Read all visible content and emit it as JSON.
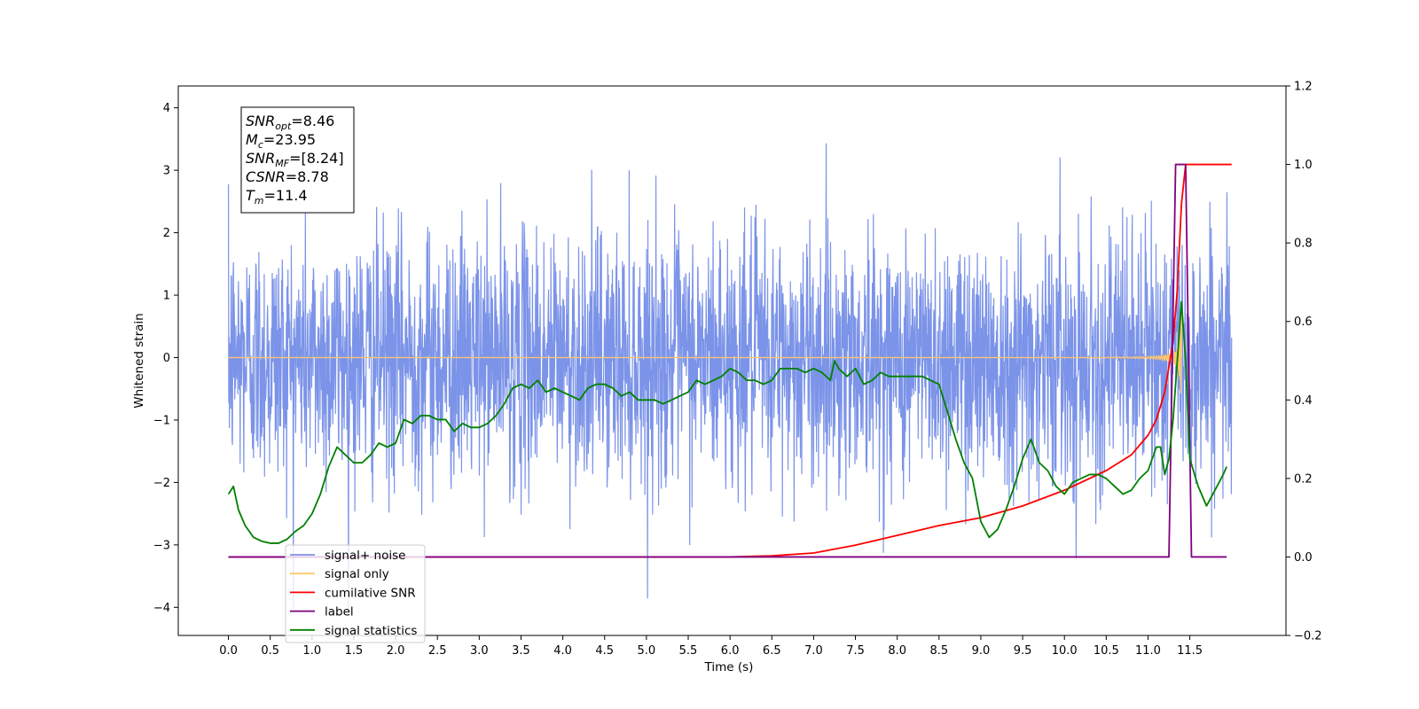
{
  "chart_data": {
    "type": "line",
    "xlabel": "Time (s)",
    "ylabel": "Whitened strain",
    "xlim": [
      -0.6,
      12.65
    ],
    "ylim": [
      -4.45,
      4.35
    ],
    "y2lim": [
      -0.2,
      1.2
    ],
    "x_ticks": [
      "0.0",
      "0.5",
      "1.0",
      "1.5",
      "2.0",
      "2.5",
      "3.0",
      "3.5",
      "4.0",
      "4.5",
      "5.0",
      "5.5",
      "6.0",
      "6.5",
      "7.0",
      "7.5",
      "8.0",
      "8.5",
      "9.0",
      "9.5",
      "10.0",
      "10.5",
      "11.0",
      "11.5"
    ],
    "y_ticks": [
      "4",
      "3",
      "2",
      "1",
      "0",
      "−1",
      "−2",
      "−3",
      "−4"
    ],
    "y2_ticks": [
      "1.2",
      "1.0",
      "0.8",
      "0.6",
      "0.4",
      "0.2",
      "0.0",
      "−0.2"
    ],
    "annotation": {
      "lines": [
        {
          "sym": "SNR",
          "sub": "opt",
          "val": "=8.46"
        },
        {
          "sym": "M",
          "sub": "c",
          "val": "=23.95"
        },
        {
          "sym": "SNR",
          "sub": "MF",
          "val": "=[8.24]"
        },
        {
          "sym": "CSNR",
          "sub": "",
          "val": "=8.78"
        },
        {
          "sym": "T",
          "sub": "m",
          "val": "=11.4"
        }
      ]
    },
    "legend": {
      "placement": "lower-left",
      "entries": [
        {
          "label": "signal+ noise",
          "color": "#7b93e8"
        },
        {
          "label": "signal only",
          "color": "#ffc66e"
        },
        {
          "label": "cumilative SNR",
          "color": "#ff0000"
        },
        {
          "label": "label",
          "color": "#800080"
        },
        {
          "label": "signal statistics",
          "color": "#008000"
        }
      ]
    },
    "series": [
      {
        "name": "signal+ noise",
        "color": "#7b93e8",
        "axis": "left",
        "kind": "white-noise",
        "x_range": [
          0.0,
          12.0
        ],
        "std": 1.0,
        "peak": 3.94
      },
      {
        "name": "signal only",
        "color": "#ffc66e",
        "axis": "left",
        "kind": "chirp",
        "x_range": [
          0.0,
          11.4
        ],
        "max_amp": 1.0
      },
      {
        "name": "cumilative SNR",
        "color": "#ff0000",
        "axis": "right",
        "x": [
          0.0,
          5.0,
          6.0,
          6.5,
          7.0,
          7.5,
          8.0,
          8.5,
          9.0,
          9.5,
          10.0,
          10.5,
          10.8,
          11.0,
          11.1,
          11.2,
          11.3,
          11.35,
          11.4,
          11.45,
          11.5,
          11.6,
          11.8,
          12.0
        ],
        "values": [
          0.0,
          0.0,
          0.0,
          0.003,
          0.01,
          0.03,
          0.055,
          0.08,
          0.1,
          0.13,
          0.17,
          0.22,
          0.26,
          0.31,
          0.35,
          0.42,
          0.55,
          0.68,
          0.9,
          1.0,
          1.0,
          1.0,
          1.0,
          1.0
        ]
      },
      {
        "name": "label",
        "color": "#800080",
        "axis": "right",
        "x": [
          0.0,
          11.25,
          11.33,
          11.45,
          11.52,
          11.94
        ],
        "values": [
          0.0,
          0.0,
          1.0,
          1.0,
          0.0,
          0.0
        ]
      },
      {
        "name": "signal statistics",
        "color": "#008000",
        "axis": "right",
        "x": [
          0.0,
          0.06,
          0.12,
          0.2,
          0.3,
          0.4,
          0.5,
          0.6,
          0.7,
          0.8,
          0.9,
          1.0,
          1.1,
          1.2,
          1.3,
          1.4,
          1.5,
          1.6,
          1.7,
          1.8,
          1.9,
          2.0,
          2.1,
          2.2,
          2.3,
          2.4,
          2.5,
          2.6,
          2.7,
          2.8,
          2.9,
          3.0,
          3.1,
          3.2,
          3.3,
          3.4,
          3.5,
          3.6,
          3.7,
          3.8,
          3.9,
          4.0,
          4.1,
          4.2,
          4.3,
          4.4,
          4.5,
          4.6,
          4.7,
          4.8,
          4.9,
          5.0,
          5.1,
          5.2,
          5.3,
          5.4,
          5.5,
          5.6,
          5.7,
          5.8,
          5.9,
          6.0,
          6.1,
          6.2,
          6.3,
          6.4,
          6.5,
          6.6,
          6.7,
          6.8,
          6.9,
          7.0,
          7.1,
          7.2,
          7.25,
          7.3,
          7.4,
          7.5,
          7.6,
          7.7,
          7.8,
          7.9,
          8.0,
          8.1,
          8.2,
          8.3,
          8.4,
          8.5,
          8.6,
          8.7,
          8.8,
          8.9,
          9.0,
          9.1,
          9.2,
          9.3,
          9.4,
          9.5,
          9.6,
          9.7,
          9.8,
          9.9,
          10.0,
          10.1,
          10.2,
          10.3,
          10.4,
          10.5,
          10.6,
          10.7,
          10.8,
          10.9,
          11.0,
          11.1,
          11.15,
          11.2,
          11.25,
          11.3,
          11.35,
          11.4,
          11.45,
          11.5,
          11.6,
          11.7,
          11.8,
          11.9,
          11.94
        ],
        "values": [
          0.16,
          0.18,
          0.12,
          0.08,
          0.05,
          0.04,
          0.035,
          0.035,
          0.045,
          0.065,
          0.08,
          0.11,
          0.16,
          0.23,
          0.28,
          0.26,
          0.24,
          0.24,
          0.26,
          0.29,
          0.28,
          0.29,
          0.35,
          0.34,
          0.36,
          0.36,
          0.35,
          0.35,
          0.32,
          0.34,
          0.33,
          0.33,
          0.34,
          0.36,
          0.39,
          0.43,
          0.44,
          0.43,
          0.45,
          0.42,
          0.43,
          0.42,
          0.41,
          0.4,
          0.43,
          0.44,
          0.44,
          0.43,
          0.41,
          0.42,
          0.4,
          0.4,
          0.4,
          0.39,
          0.4,
          0.41,
          0.42,
          0.45,
          0.44,
          0.45,
          0.46,
          0.48,
          0.47,
          0.45,
          0.45,
          0.44,
          0.45,
          0.48,
          0.48,
          0.48,
          0.47,
          0.48,
          0.47,
          0.45,
          0.5,
          0.48,
          0.46,
          0.48,
          0.44,
          0.45,
          0.47,
          0.46,
          0.46,
          0.46,
          0.46,
          0.46,
          0.45,
          0.44,
          0.37,
          0.3,
          0.24,
          0.2,
          0.09,
          0.05,
          0.07,
          0.12,
          0.18,
          0.25,
          0.3,
          0.24,
          0.22,
          0.18,
          0.16,
          0.19,
          0.2,
          0.21,
          0.21,
          0.2,
          0.18,
          0.16,
          0.17,
          0.2,
          0.22,
          0.28,
          0.28,
          0.21,
          0.25,
          0.35,
          0.5,
          0.65,
          0.5,
          0.25,
          0.18,
          0.13,
          0.17,
          0.21,
          0.23
        ]
      }
    ]
  }
}
